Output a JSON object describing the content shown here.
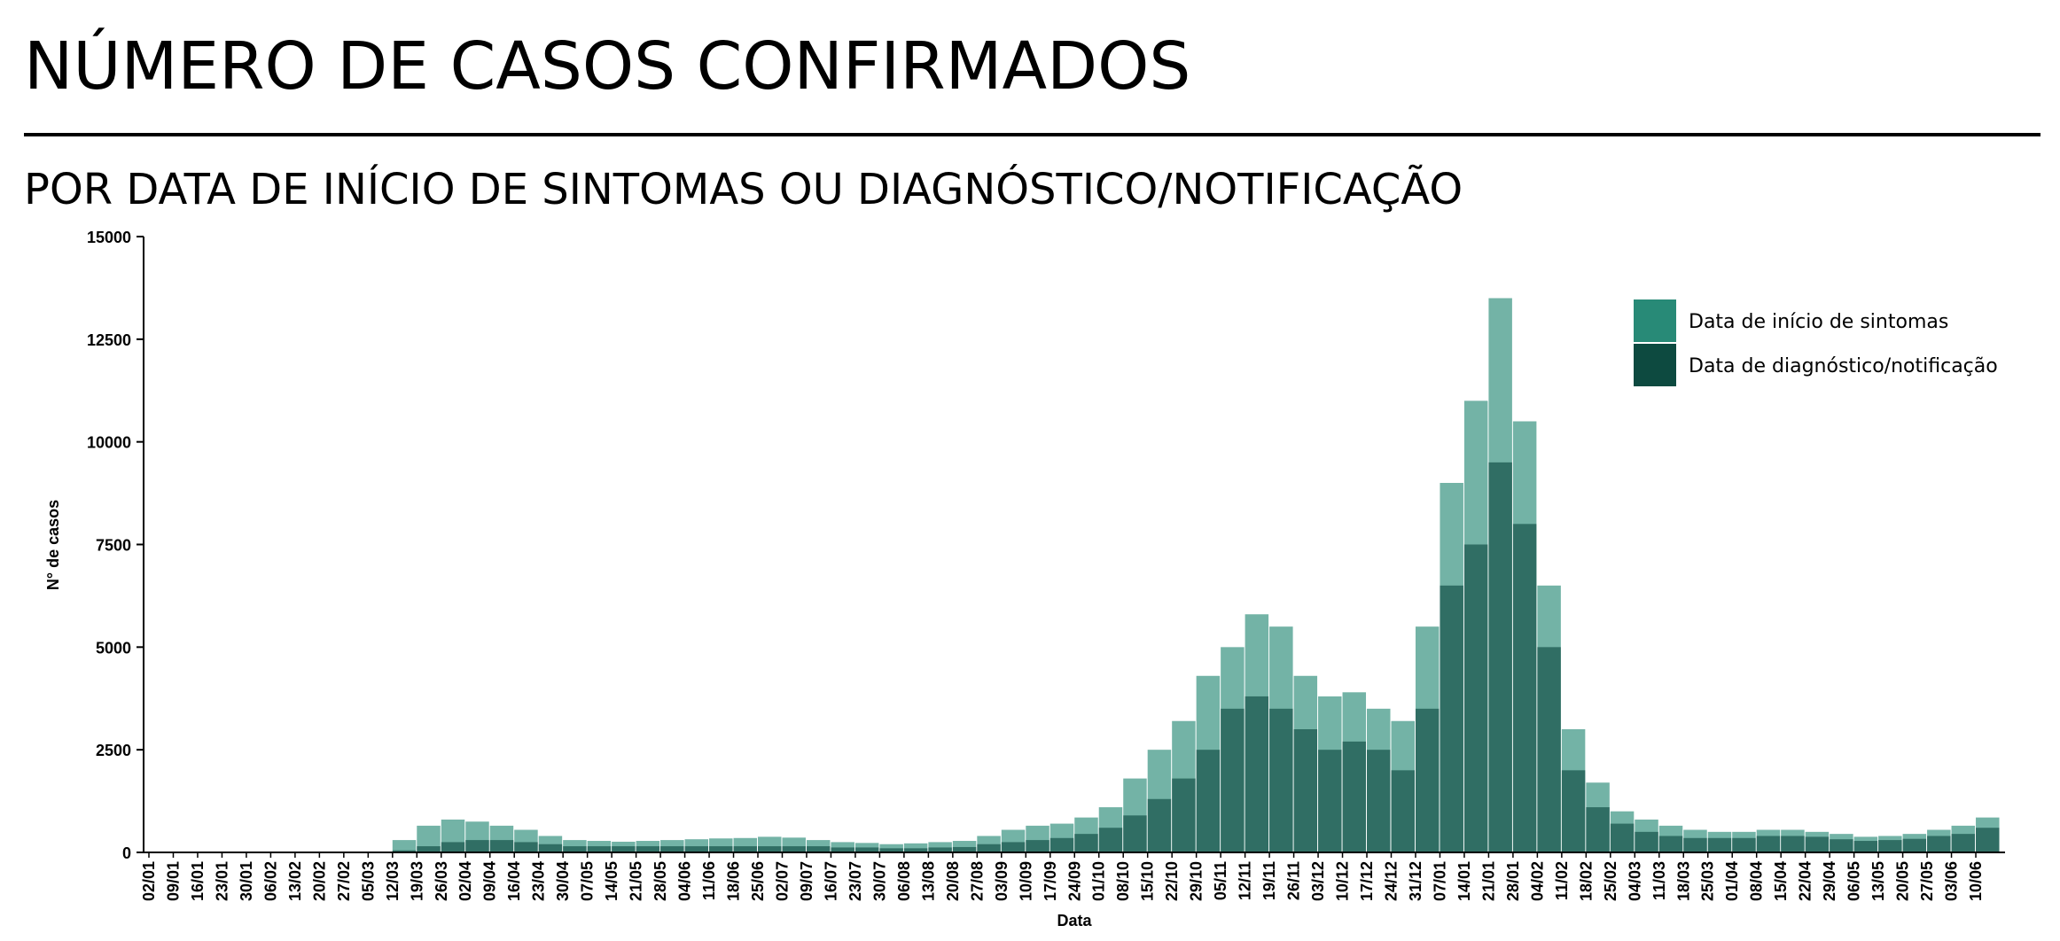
{
  "chart_data": {
    "type": "bar",
    "title": "NÚMERO DE CASOS CONFIRMADOS",
    "subtitle": "POR DATA DE INÍCIO DE SINTOMAS OU DIAGNÓSTICO/NOTIFICAÇÃO",
    "x_label": "Data",
    "y_label": "N° de casos",
    "categories": [
      "02/01",
      "09/01",
      "16/01",
      "23/01",
      "30/01",
      "06/02",
      "13/02",
      "20/02",
      "27/02",
      "05/03",
      "12/03",
      "19/03",
      "26/03",
      "02/04",
      "09/04",
      "16/04",
      "23/04",
      "30/04",
      "07/05",
      "14/05",
      "21/05",
      "28/05",
      "04/06",
      "11/06",
      "18/06",
      "25/06",
      "02/07",
      "09/07",
      "16/07",
      "23/07",
      "30/07",
      "06/08",
      "13/08",
      "20/08",
      "27/08",
      "03/09",
      "10/09",
      "17/09",
      "24/09",
      "01/10",
      "08/10",
      "15/10",
      "22/10",
      "29/10",
      "05/11",
      "12/11",
      "19/11",
      "26/11",
      "03/12",
      "10/12",
      "17/12",
      "24/12",
      "31/12",
      "07/01",
      "14/01",
      "21/01",
      "28/01",
      "04/02",
      "11/02",
      "18/02",
      "25/02",
      "04/03",
      "11/03",
      "18/03",
      "25/03",
      "01/04",
      "08/04",
      "15/04",
      "22/04",
      "29/04",
      "06/05",
      "13/05",
      "20/05",
      "27/05",
      "03/06",
      "10/06"
    ],
    "series": [
      {
        "name": "Data de início de sintomas",
        "color": "#288a77",
        "values": [
          0,
          0,
          0,
          0,
          0,
          0,
          0,
          0,
          0,
          20,
          300,
          650,
          800,
          750,
          650,
          550,
          400,
          300,
          280,
          260,
          280,
          300,
          320,
          340,
          350,
          380,
          360,
          300,
          250,
          230,
          200,
          220,
          250,
          280,
          400,
          550,
          650,
          700,
          850,
          1100,
          1800,
          2500,
          3200,
          4300,
          5000,
          5800,
          5500,
          4300,
          3800,
          3900,
          3500,
          3200,
          5500,
          9000,
          11000,
          13500,
          10500,
          6500,
          3000,
          1700,
          1000,
          800,
          650,
          550,
          500,
          500,
          550,
          550,
          500,
          450,
          380,
          400,
          450,
          550,
          650,
          850
        ]
      },
      {
        "name": "Data de diagnóstico/notificação",
        "color": "#0d4a40",
        "values": [
          0,
          0,
          0,
          0,
          0,
          0,
          0,
          0,
          0,
          0,
          50,
          150,
          250,
          300,
          300,
          250,
          200,
          150,
          150,
          150,
          150,
          150,
          150,
          150,
          150,
          150,
          150,
          150,
          120,
          120,
          100,
          100,
          120,
          130,
          200,
          250,
          300,
          350,
          450,
          600,
          900,
          1300,
          1800,
          2500,
          3500,
          3800,
          3500,
          3000,
          2500,
          2700,
          2500,
          2000,
          3500,
          6500,
          7500,
          9500,
          8000,
          5000,
          2000,
          1100,
          700,
          500,
          400,
          350,
          350,
          350,
          400,
          400,
          380,
          320,
          280,
          300,
          330,
          400,
          450,
          600
        ]
      }
    ],
    "ylim": [
      0,
      15000
    ],
    "yticks": [
      0,
      2500,
      5000,
      7500,
      10000,
      12500,
      15000
    ],
    "legend": "top-right"
  }
}
